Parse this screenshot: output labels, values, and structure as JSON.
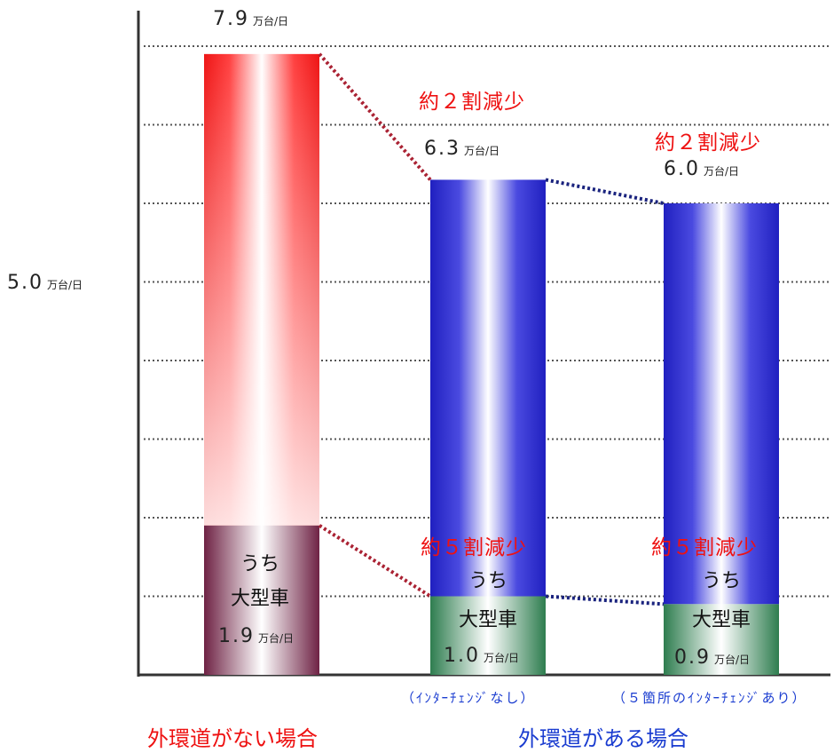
{
  "chart_data": {
    "type": "bar",
    "unit": "万台/日",
    "y_tick_label": {
      "value": "5.0",
      "unit": "万台/日"
    },
    "grid": true,
    "bars": [
      {
        "total": 7.9,
        "total_text": "7.9",
        "large": 1.9,
        "large_text": "1.9",
        "inner_label_1": "うち",
        "inner_label_2": "大型車",
        "color_total": "#ee2222",
        "color_large": "#7a2a55"
      },
      {
        "total": 6.3,
        "total_text": "6.3",
        "large": 1.0,
        "large_text": "1.0",
        "inner_label_1": "うち",
        "inner_label_2": "大型車",
        "color_total": "#2222cc",
        "color_large": "#2e8b57",
        "note": "（ｲﾝﾀｰﾁｪﾝｼﾞなし）"
      },
      {
        "total": 6.0,
        "total_text": "6.0",
        "large": 0.9,
        "large_text": "0.9",
        "inner_label_1": "うち",
        "inner_label_2": "大型車",
        "color_total": "#2222cc",
        "color_large": "#2e8b57",
        "note": "（５箇所のｲﾝﾀｰﾁｪﾝｼﾞあり）"
      }
    ],
    "reductions": {
      "total_1": "約２割減少",
      "total_2": "約２割減少",
      "large_1": "約５割減少",
      "large_2": "約５割減少"
    },
    "categories": [
      "外環道がない場合",
      "外環道がある場合"
    ]
  },
  "colors": {
    "reduction": "#ee1111",
    "category_without": "#ee1111",
    "category_with": "#1a3cd0"
  }
}
